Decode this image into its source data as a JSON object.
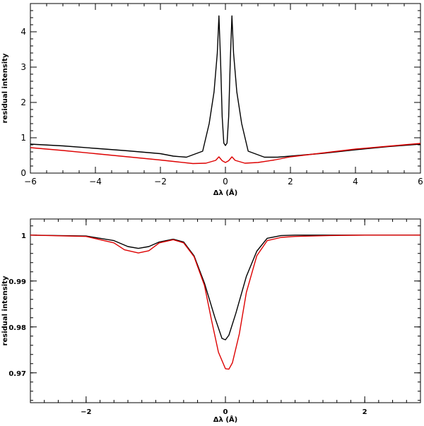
{
  "chart_data": [
    {
      "type": "line",
      "xlabel": "Δλ (Å)",
      "ylabel": "residual intensity",
      "xlim": [
        -6,
        6
      ],
      "ylim": [
        0,
        4.8
      ],
      "xticks": [
        -6,
        -4,
        -2,
        0,
        2,
        4,
        6
      ],
      "xtick_labels": [
        "−6",
        "−4",
        "−2",
        "0",
        "2",
        "4",
        "6"
      ],
      "yticks": [
        0,
        1,
        2,
        3,
        4
      ],
      "ytick_labels": [
        "0",
        "1",
        "2",
        "3",
        "4"
      ],
      "grid": false,
      "series": [
        {
          "color": "#000000",
          "x": [
            -6,
            -5,
            -4,
            -3,
            -2,
            -1.6,
            -1.2,
            -0.7,
            -0.5,
            -0.35,
            -0.25,
            -0.2,
            -0.15,
            -0.1,
            -0.05,
            0,
            0.05,
            0.1,
            0.15,
            0.2,
            0.25,
            0.35,
            0.5,
            0.7,
            1.2,
            1.6,
            2,
            3,
            4,
            5,
            6
          ],
          "y": [
            0.82,
            0.77,
            0.7,
            0.63,
            0.55,
            0.48,
            0.45,
            0.62,
            1.4,
            2.3,
            3.4,
            4.45,
            3.2,
            1.6,
            0.85,
            0.78,
            0.85,
            1.6,
            3.2,
            4.45,
            3.4,
            2.3,
            1.4,
            0.62,
            0.45,
            0.45,
            0.48,
            0.56,
            0.66,
            0.75,
            0.82
          ]
        },
        {
          "color": "#dd0000",
          "x": [
            -6,
            -5,
            -4,
            -3,
            -2,
            -1.5,
            -1,
            -0.6,
            -0.3,
            -0.2,
            -0.1,
            0,
            0.1,
            0.2,
            0.3,
            0.6,
            1,
            1.5,
            2,
            3,
            4,
            5,
            6
          ],
          "y": [
            0.72,
            0.64,
            0.55,
            0.46,
            0.37,
            0.32,
            0.27,
            0.28,
            0.36,
            0.46,
            0.35,
            0.3,
            0.35,
            0.46,
            0.36,
            0.28,
            0.3,
            0.37,
            0.46,
            0.57,
            0.68,
            0.76,
            0.84
          ]
        }
      ]
    },
    {
      "type": "line",
      "xlabel": "Δλ (Å)",
      "ylabel": "residual intensity",
      "xlim": [
        -2.8,
        2.8
      ],
      "ylim": [
        0.9635,
        1.0035
      ],
      "xticks": [
        -2,
        0,
        2
      ],
      "xtick_labels": [
        "−2",
        "0",
        "2"
      ],
      "yticks": [
        1,
        0.99,
        0.98,
        0.97
      ],
      "ytick_labels": [
        "1",
        "0.99",
        "0.98",
        "0.97"
      ],
      "grid": false,
      "series": [
        {
          "color": "#000000",
          "x": [
            -2.8,
            -2.0,
            -1.6,
            -1.4,
            -1.25,
            -1.1,
            -0.95,
            -0.75,
            -0.6,
            -0.45,
            -0.3,
            -0.15,
            -0.05,
            0.0,
            0.05,
            0.15,
            0.3,
            0.45,
            0.6,
            0.8,
            1.0,
            1.5,
            2.0,
            2.8
          ],
          "y": [
            1.0,
            0.9998,
            0.9988,
            0.9975,
            0.9971,
            0.9975,
            0.9985,
            0.9991,
            0.9985,
            0.9955,
            0.9895,
            0.982,
            0.9775,
            0.9772,
            0.9782,
            0.983,
            0.991,
            0.9965,
            0.9993,
            0.9999,
            1.0,
            1.0,
            1.0,
            1.0
          ]
        },
        {
          "color": "#dd0000",
          "x": [
            -2.8,
            -2.0,
            -1.6,
            -1.45,
            -1.25,
            -1.1,
            -0.95,
            -0.75,
            -0.6,
            -0.45,
            -0.3,
            -0.2,
            -0.1,
            0.0,
            0.05,
            0.1,
            0.2,
            0.3,
            0.45,
            0.6,
            0.8,
            1.0,
            1.5,
            2.0,
            2.8
          ],
          "y": [
            1.0,
            0.9997,
            0.9983,
            0.9968,
            0.9961,
            0.9966,
            0.9983,
            0.999,
            0.9983,
            0.9953,
            0.989,
            0.9815,
            0.9745,
            0.9709,
            0.9708,
            0.9722,
            0.9785,
            0.9875,
            0.9955,
            0.9988,
            0.9995,
            0.9997,
            0.9999,
            1.0,
            1.0
          ]
        }
      ]
    }
  ]
}
